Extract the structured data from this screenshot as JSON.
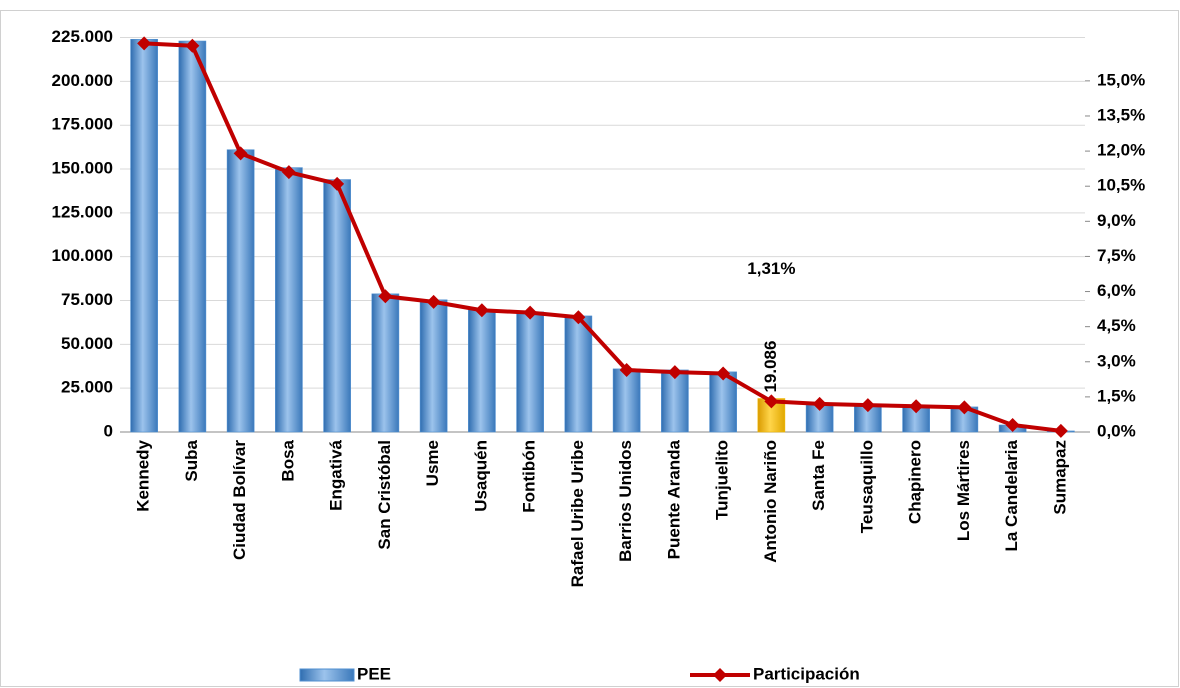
{
  "chart_data": {
    "type": "bar-line",
    "categories": [
      "Kennedy",
      "Suba",
      "Ciudad Bolívar",
      "Bosa",
      "Engativá",
      "San Cristóbal",
      "Usme",
      "Usaquén",
      "Fontibón",
      "Rafael Uribe Uribe",
      "Barrios Unidos",
      "Puente Aranda",
      "Tunjuelito",
      "Antonio Nariño",
      "Santa Fe",
      "Teusaquillo",
      "Chapinero",
      "Los Mártires",
      "La Candelaria",
      "Sumapaz"
    ],
    "series": [
      {
        "name": "PEE",
        "type": "bar",
        "color": "#4f8fd0",
        "point_colors": [
          "#4f8fd0",
          "#4f8fd0",
          "#4f8fd0",
          "#4f8fd0",
          "#4f8fd0",
          "#4f8fd0",
          "#4f8fd0",
          "#4f8fd0",
          "#4f8fd0",
          "#4f8fd0",
          "#4f8fd0",
          "#4f8fd0",
          "#4f8fd0",
          "#f2b800",
          "#4f8fd0",
          "#4f8fd0",
          "#4f8fd0",
          "#4f8fd0",
          "#4f8fd0",
          "#4f8fd0"
        ],
        "values": [
          224000,
          223000,
          161000,
          150800,
          144000,
          78800,
          75400,
          69700,
          68500,
          66200,
          36000,
          35400,
          34300,
          19086,
          15400,
          14800,
          14300,
          14300,
          4000,
          600
        ],
        "value_labels": [
          null,
          null,
          null,
          null,
          null,
          null,
          null,
          null,
          null,
          null,
          null,
          null,
          null,
          "19.086",
          null,
          null,
          null,
          null,
          null,
          null
        ]
      },
      {
        "name": "Participación",
        "type": "line",
        "axis": "y2",
        "color": "#c00000",
        "values": [
          16.6,
          16.5,
          11.9,
          11.1,
          10.6,
          5.8,
          5.56,
          5.2,
          5.1,
          4.9,
          2.65,
          2.56,
          2.5,
          1.31,
          1.2,
          1.15,
          1.1,
          1.05,
          0.3,
          0.05
        ],
        "value_labels": [
          null,
          null,
          null,
          null,
          null,
          null,
          null,
          null,
          null,
          null,
          null,
          null,
          null,
          "1,31%",
          null,
          null,
          null,
          null,
          null,
          null
        ]
      }
    ],
    "ylim": [
      0,
      235000
    ],
    "yticks": [
      0,
      {
        "value": 25000,
        "label": "25.000"
      },
      {
        "value": 50000,
        "label": "50.000"
      },
      {
        "value": 75000,
        "label": "75.000"
      },
      {
        "value": 100000,
        "label": "100.000"
      },
      {
        "value": 125000,
        "label": "125.000"
      },
      {
        "value": 150000,
        "label": "150.000"
      },
      {
        "value": 175000,
        "label": "175.000"
      },
      {
        "value": 200000,
        "label": "200.000"
      },
      {
        "value": 225000,
        "label": "225.000"
      }
    ],
    "y2lim": [
      0,
      17.6
    ],
    "y2ticks": [
      {
        "value": 0,
        "label": "0,0%"
      },
      {
        "value": 1.5,
        "label": "1,5%"
      },
      {
        "value": 3,
        "label": "3,0%"
      },
      {
        "value": 4.5,
        "label": "4,5%"
      },
      {
        "value": 6,
        "label": "6,0%"
      },
      {
        "value": 7.5,
        "label": "7,5%"
      },
      {
        "value": 9,
        "label": "9,0%"
      },
      {
        "value": 10.5,
        "label": "10,5%"
      },
      {
        "value": 12,
        "label": "12,0%"
      },
      {
        "value": 13.5,
        "label": "13,5%"
      },
      {
        "value": 15,
        "label": "15,0%"
      }
    ],
    "grid": true
  }
}
